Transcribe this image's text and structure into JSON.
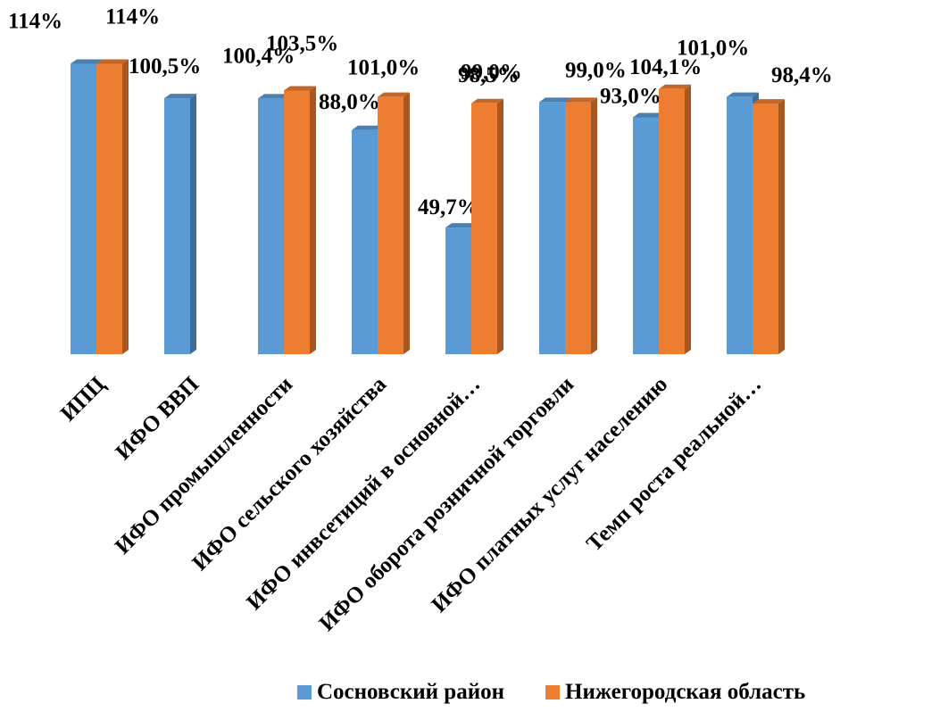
{
  "chart_data": {
    "type": "bar",
    "categories": [
      "ИПЦ",
      "ИФО ВВП",
      "ИФО промышленности",
      "ИФО сельского хозяйства",
      "ИФО инвсетиций в основной…",
      "ИФО оборота розничной торговли",
      "ИФО платных услуг населению",
      "Темп роста реальной…"
    ],
    "series": [
      {
        "name": "Сосновский район",
        "color": "#5B9BD5",
        "values": [
          114,
          100.5,
          100.4,
          88.0,
          49.7,
          99.0,
          93.0,
          101.0
        ],
        "labels": [
          "114%",
          "100,5%",
          "100,4%",
          "88,0%",
          "49,7%",
          "99,0%",
          "93,0%",
          "101,0%"
        ]
      },
      {
        "name": "Нижегородская область",
        "color": "#ED7D31",
        "values": [
          114,
          null,
          103.5,
          101.0,
          98.5,
          99.0,
          104.1,
          98.4
        ],
        "labels": [
          "114%",
          "",
          "103,5%",
          "101,0%",
          "98,5%",
          "99,0%",
          "104,1%",
          "98,4%"
        ]
      }
    ],
    "legend_position": "bottom",
    "grid": false
  },
  "legend": {
    "series1": "Сосновский район",
    "series2": "Нижегородская область"
  }
}
